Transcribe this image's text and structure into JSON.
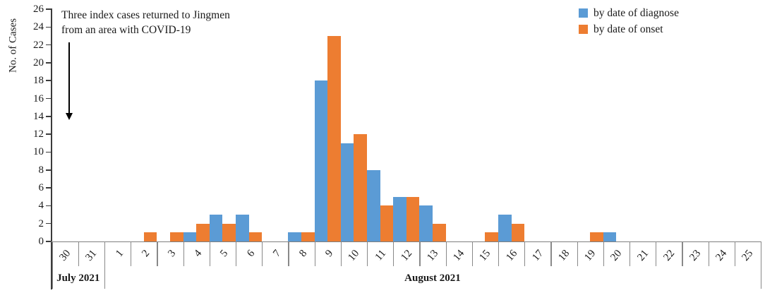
{
  "chart_data": {
    "type": "bar",
    "title": "",
    "ylabel": "No. of Cases",
    "xlabel": "",
    "ylim": [
      0,
      26
    ],
    "ytick_step": 2,
    "grid": false,
    "legend_position": "top-right",
    "categories": [
      "30",
      "31",
      "1",
      "2",
      "3",
      "4",
      "5",
      "6",
      "7",
      "8",
      "9",
      "10",
      "11",
      "12",
      "13",
      "14",
      "15",
      "16",
      "17",
      "18",
      "19",
      "20",
      "21",
      "22",
      "23",
      "24",
      "25"
    ],
    "x_groups": [
      {
        "label": "July 2021",
        "span": 2
      },
      {
        "label": "August 2021",
        "span": 25
      }
    ],
    "series": [
      {
        "name": "by date of diagnose",
        "color": "#5B9BD5",
        "values": [
          0,
          0,
          0,
          0,
          0,
          1,
          3,
          3,
          0,
          1,
          18,
          11,
          8,
          5,
          4,
          0,
          0,
          3,
          0,
          0,
          0,
          1,
          0,
          0,
          0,
          0,
          0
        ]
      },
      {
        "name": "by date of onset",
        "color": "#ED7D31",
        "values": [
          0,
          0,
          0,
          1,
          1,
          2,
          2,
          1,
          0,
          1,
          23,
          12,
          4,
          5,
          2,
          0,
          1,
          2,
          0,
          0,
          1,
          0,
          0,
          0,
          0,
          0,
          0
        ]
      }
    ],
    "annotation": {
      "line1": "Three index cases returned to Jingmen",
      "line2": "from an area with COVID-19"
    }
  }
}
